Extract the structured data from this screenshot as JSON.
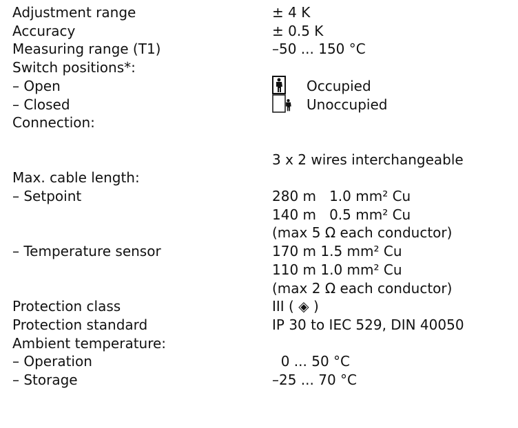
{
  "rows": [
    {
      "label": "Adjustment range",
      "value": "± 4 K"
    },
    {
      "label": "Accuracy",
      "value": "± 0.5 K"
    },
    {
      "label": "Measuring range (T1)",
      "value": "–50 ... 150 °C"
    },
    {
      "label": "Switch positions*:"
    },
    {
      "label": "– Open",
      "value": "Occupied"
    },
    {
      "label": "– Closed",
      "value": "Unoccupied"
    },
    {
      "label": "Connection:"
    },
    {
      "value": "3 x 2 wires interchangeable"
    },
    {
      "label": "Max. cable length:"
    },
    {
      "label": "– Setpoint",
      "value": "280 m   1.0 mm² Cu"
    },
    {
      "value": "140 m   0.5 mm² Cu"
    },
    {
      "value": "(max 5 Ω each conductor)"
    },
    {
      "label": "– Temperature sensor",
      "value": "170 m 1.5 mm² Cu"
    },
    {
      "value": "110 m 1.0 mm² Cu"
    },
    {
      "value": "(max 2 Ω each conductor)"
    },
    {
      "label": "Protection class",
      "value": "III ( ◈ )"
    },
    {
      "label": "Protection standard",
      "value": "IP 30 to IEC 529, DIN 40050"
    },
    {
      "label": "Ambient temperature:"
    },
    {
      "label": "– Operation",
      "value": "  0 ... 50 °C"
    },
    {
      "label": "– Storage",
      "value": "–25 ... 70 °C"
    }
  ]
}
